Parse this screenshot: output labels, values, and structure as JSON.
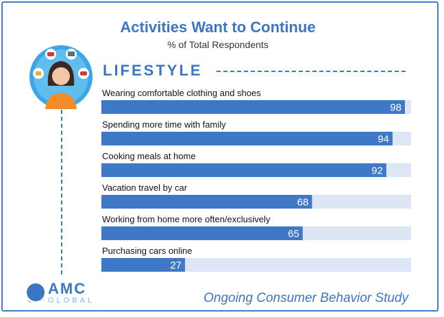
{
  "title": "Activities Want to Continue",
  "subtitle": "% of Total Respondents",
  "section": "LIFESTYLE",
  "footer": "Ongoing Consumer Behavior Study",
  "logo": {
    "name": "AMC",
    "sub": "GLOBAL"
  },
  "colors": {
    "accent": "#3b76c4",
    "bar": "#3f78c6",
    "track": "#dce6f5"
  },
  "chart_data": {
    "type": "bar",
    "orientation": "horizontal",
    "categories": [
      "Wearing comfortable clothing and shoes",
      "Spending more time with family",
      "Cooking meals at home",
      "Vacation travel by car",
      "Working from home more often/exclusively",
      "Purchasing cars online"
    ],
    "values": [
      98,
      94,
      92,
      68,
      65,
      27
    ],
    "xlim": [
      0,
      100
    ],
    "data_labels": true,
    "grid": false,
    "legend": "none"
  }
}
